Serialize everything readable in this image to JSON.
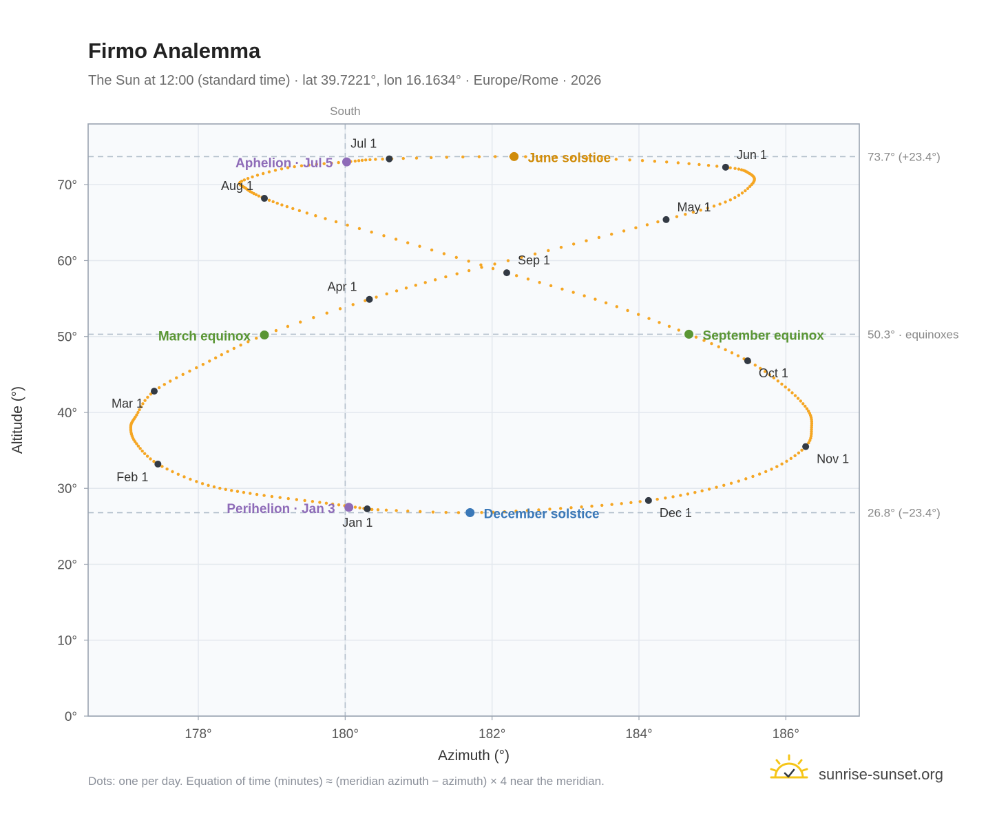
{
  "header": {
    "title": "Firmo Analemma",
    "subtitle": "The Sun at 12:00 (standard time) · lat 39.7221°, lon 16.1634° · Europe/Rome · 2026"
  },
  "footer": {
    "note": "Dots: one per day. Equation of time (minutes) ≈ (meridian azimuth − azimuth) × 4 near the meridian.",
    "brand": "sunrise-sunset.org",
    "brand_icon": "sun-logo-icon"
  },
  "colors": {
    "curve": "#f5a623",
    "month_point": "#333a44",
    "june_solstice": "#d08c0a",
    "december_solstice": "#3a78b8",
    "equinox": "#5a9634",
    "apsis": "#8e6bb8",
    "reference_line": "#b4c0cc",
    "plot_background": "#f8fafc",
    "plot_border": "#9aa3b0",
    "grid": "#e3e8ee"
  },
  "chart_data": {
    "type": "scatter",
    "title": "Firmo Analemma",
    "xlabel": "Azimuth (°)",
    "ylabel": "Altitude (°)",
    "xlim": [
      176.5,
      187.0
    ],
    "ylim": [
      0,
      78
    ],
    "x_ticks": [
      178,
      180,
      182,
      184,
      186
    ],
    "x_tick_labels": [
      "178°",
      "180°",
      "182°",
      "184°",
      "186°"
    ],
    "y_ticks": [
      0,
      10,
      20,
      30,
      40,
      50,
      60,
      70
    ],
    "y_tick_labels": [
      "0°",
      "10°",
      "20°",
      "30°",
      "40°",
      "50°",
      "60°",
      "70°"
    ],
    "grid": true,
    "meridian": {
      "azimuth": 180,
      "label": "South"
    },
    "reference_lines": [
      {
        "altitude": 73.7,
        "label": "73.7° (+23.4°)"
      },
      {
        "altitude": 50.3,
        "label": "50.3° · equinoxes"
      },
      {
        "altitude": 26.8,
        "label": "26.8° (−23.4°)"
      }
    ],
    "month_points": [
      {
        "label": "Jan 1",
        "azimuth": 180.3,
        "altitude": 27.3
      },
      {
        "label": "Feb 1",
        "azimuth": 177.45,
        "altitude": 33.2
      },
      {
        "label": "Mar 1",
        "azimuth": 177.4,
        "altitude": 42.8
      },
      {
        "label": "Apr 1",
        "azimuth": 180.33,
        "altitude": 54.9
      },
      {
        "label": "May 1",
        "azimuth": 184.37,
        "altitude": 65.4
      },
      {
        "label": "Jun 1",
        "azimuth": 185.18,
        "altitude": 72.3
      },
      {
        "label": "Jul 1",
        "azimuth": 180.6,
        "altitude": 73.4
      },
      {
        "label": "Aug 1",
        "azimuth": 178.9,
        "altitude": 68.2
      },
      {
        "label": "Sep 1",
        "azimuth": 182.2,
        "altitude": 58.4
      },
      {
        "label": "Oct 1",
        "azimuth": 185.48,
        "altitude": 46.8
      },
      {
        "label": "Nov 1",
        "azimuth": 186.27,
        "altitude": 35.5
      },
      {
        "label": "Dec 1",
        "azimuth": 184.13,
        "altitude": 28.4
      }
    ],
    "events": [
      {
        "label": "June solstice",
        "azimuth": 182.3,
        "altitude": 73.7,
        "kind": "june_solstice"
      },
      {
        "label": "December solstice",
        "azimuth": 181.7,
        "altitude": 26.8,
        "kind": "december_solstice"
      },
      {
        "label": "March equinox",
        "azimuth": 178.9,
        "altitude": 50.2,
        "kind": "equinox"
      },
      {
        "label": "September equinox",
        "azimuth": 184.68,
        "altitude": 50.3,
        "kind": "equinox"
      },
      {
        "label": "Aphelion · Jul 5",
        "azimuth": 180.02,
        "altitude": 73.0,
        "kind": "apsis"
      },
      {
        "label": "Perihelion · Jan 3",
        "azimuth": 180.05,
        "altitude": 27.5,
        "kind": "apsis"
      }
    ],
    "daily_path_nodes": [
      {
        "date": "Jan 1",
        "azimuth": 180.3,
        "altitude": 27.3
      },
      {
        "date": "Jan 8",
        "azimuth": 179.7,
        "altitude": 28.1
      },
      {
        "date": "Jan 15",
        "azimuth": 178.8,
        "altitude": 29.2
      },
      {
        "date": "Jan 22",
        "azimuth": 178.1,
        "altitude": 30.5
      },
      {
        "date": "Feb 1",
        "azimuth": 177.45,
        "altitude": 33.2
      },
      {
        "date": "Feb 10",
        "azimuth": 177.15,
        "altitude": 36.0
      },
      {
        "date": "Feb 17",
        "azimuth": 177.08,
        "altitude": 38.0
      },
      {
        "date": "Feb 22",
        "azimuth": 177.15,
        "altitude": 39.5
      },
      {
        "date": "Mar 1",
        "azimuth": 177.4,
        "altitude": 42.8
      },
      {
        "date": "Mar 10",
        "azimuth": 178.1,
        "altitude": 46.5
      },
      {
        "date": "Mar 20",
        "azimuth": 178.9,
        "altitude": 50.2
      },
      {
        "date": "Apr 1",
        "azimuth": 180.33,
        "altitude": 54.9
      },
      {
        "date": "Apr 10",
        "azimuth": 181.5,
        "altitude": 58.2
      },
      {
        "date": "Apr 20",
        "azimuth": 183.0,
        "altitude": 61.9
      },
      {
        "date": "May 1",
        "azimuth": 184.37,
        "altitude": 65.4
      },
      {
        "date": "May 10",
        "azimuth": 185.2,
        "altitude": 67.8
      },
      {
        "date": "May 18",
        "azimuth": 185.55,
        "altitude": 70.2
      },
      {
        "date": "May 25",
        "azimuth": 185.5,
        "altitude": 71.5
      },
      {
        "date": "Jun 1",
        "azimuth": 185.18,
        "altitude": 72.3
      },
      {
        "date": "Jun 10",
        "azimuth": 184.0,
        "altitude": 73.2
      },
      {
        "date": "Jun 21",
        "azimuth": 182.3,
        "altitude": 73.7
      },
      {
        "date": "Jul 1",
        "azimuth": 180.6,
        "altitude": 73.4
      },
      {
        "date": "Jul 5",
        "azimuth": 180.02,
        "altitude": 73.0
      },
      {
        "date": "Jul 12",
        "azimuth": 179.2,
        "altitude": 72.2
      },
      {
        "date": "Jul 20",
        "azimuth": 178.6,
        "altitude": 70.5
      },
      {
        "date": "Jul 26",
        "azimuth": 178.65,
        "altitude": 69.5
      },
      {
        "date": "Aug 1",
        "azimuth": 178.9,
        "altitude": 68.2
      },
      {
        "date": "Aug 10",
        "azimuth": 179.5,
        "altitude": 66.2
      },
      {
        "date": "Aug 20",
        "azimuth": 180.8,
        "altitude": 62.5
      },
      {
        "date": "Sep 1",
        "azimuth": 182.2,
        "altitude": 58.4
      },
      {
        "date": "Sep 10",
        "azimuth": 183.5,
        "altitude": 54.6
      },
      {
        "date": "Sep 22",
        "azimuth": 184.68,
        "altitude": 50.3
      },
      {
        "date": "Oct 1",
        "azimuth": 185.48,
        "altitude": 46.8
      },
      {
        "date": "Oct 10",
        "azimuth": 186.0,
        "altitude": 43.3
      },
      {
        "date": "Oct 18",
        "azimuth": 186.3,
        "altitude": 40.3
      },
      {
        "date": "Oct 24",
        "azimuth": 186.35,
        "altitude": 38.0
      },
      {
        "date": "Nov 1",
        "azimuth": 186.27,
        "altitude": 35.5
      },
      {
        "date": "Nov 10",
        "azimuth": 185.8,
        "altitude": 32.5
      },
      {
        "date": "Nov 20",
        "azimuth": 185.0,
        "altitude": 30.0
      },
      {
        "date": "Dec 1",
        "azimuth": 184.13,
        "altitude": 28.4
      },
      {
        "date": "Dec 10",
        "azimuth": 183.0,
        "altitude": 27.4
      },
      {
        "date": "Dec 21",
        "azimuth": 181.7,
        "altitude": 26.8
      },
      {
        "date": "Dec 31",
        "azimuth": 180.4,
        "altitude": 27.2
      }
    ]
  }
}
